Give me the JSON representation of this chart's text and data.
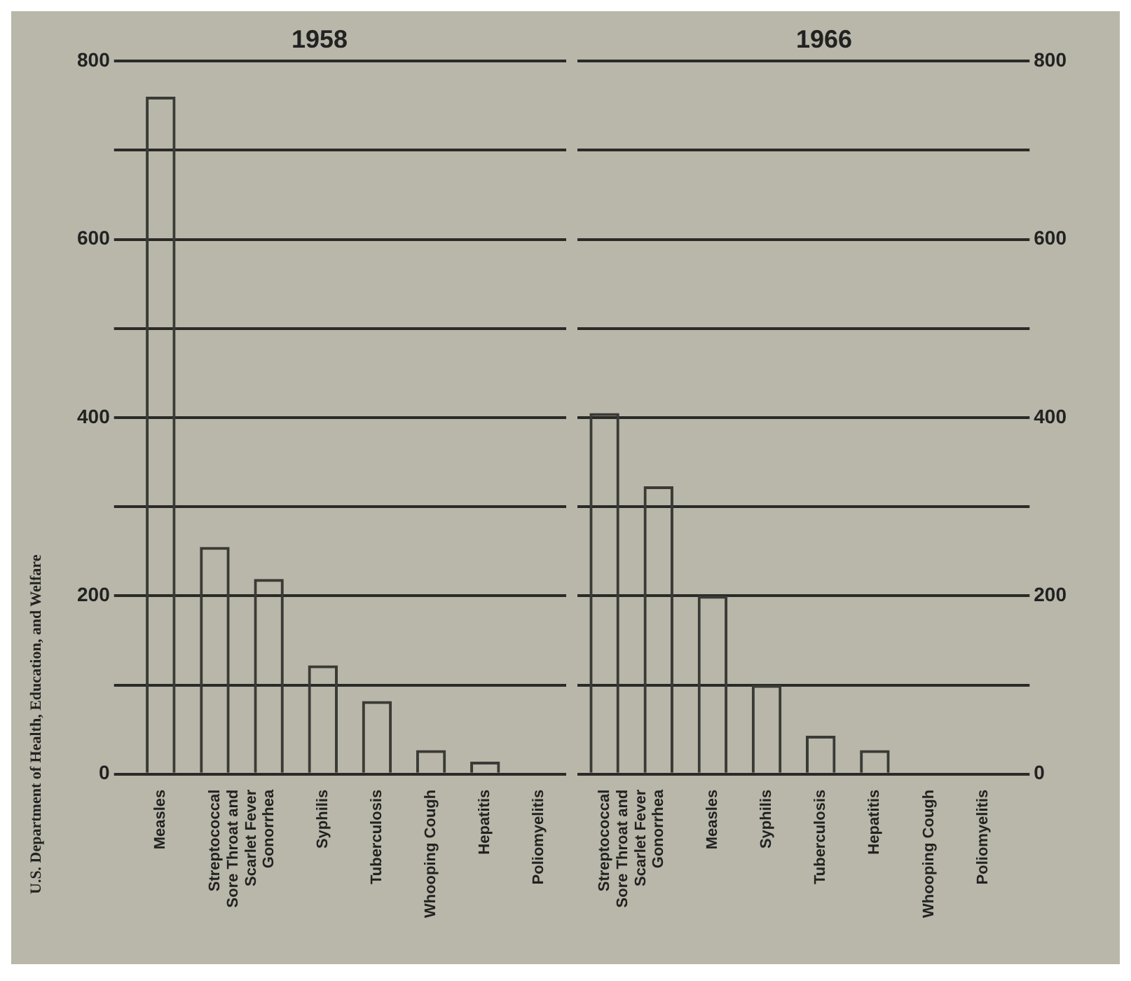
{
  "chart_data": [
    {
      "type": "bar",
      "title": "1958",
      "categories": [
        "Measles",
        "Streptococcal Sore Throat and Scarlet Fever",
        "Gonorrhea",
        "Syphilis",
        "Tuberculosis",
        "Whooping Cough",
        "Hepatitis",
        "Poliomyelitis"
      ],
      "series": [
        {
          "color": "#3a3a36",
          "values": [
            760,
            255,
            219,
            122,
            82,
            27,
            14,
            0
          ]
        }
      ],
      "ylim": [
        0,
        800
      ],
      "yticks": [
        0,
        {
          "value": 100,
          "label": null
        },
        200,
        {
          "value": 300,
          "label": null
        },
        400,
        {
          "value": 500,
          "label": null
        },
        600,
        {
          "value": 700,
          "label": null
        },
        800
      ],
      "grid": "y",
      "annotations": [
        "U.S. Department of Health, Education, and Welfare"
      ]
    },
    {
      "type": "bar",
      "title": "1966",
      "categories": [
        "Streptococcal Sore Throat and Scarlet Fever",
        "Gonorrhea",
        "Measles",
        "Syphilis",
        "Tuberculosis",
        "Hepatitis",
        "Whooping Cough",
        "Poliomyelitis"
      ],
      "series": [
        {
          "color": "#3a3a36",
          "values": [
            405,
            323,
            200,
            100,
            43,
            27,
            0,
            0
          ]
        }
      ],
      "ylim": [
        0,
        800
      ],
      "yticks": [
        0,
        {
          "value": 100,
          "label": null
        },
        200,
        {
          "value": 300,
          "label": null
        },
        400,
        {
          "value": 500,
          "label": null
        },
        600,
        {
          "value": 700,
          "label": null
        },
        800
      ],
      "grid": "y"
    }
  ]
}
